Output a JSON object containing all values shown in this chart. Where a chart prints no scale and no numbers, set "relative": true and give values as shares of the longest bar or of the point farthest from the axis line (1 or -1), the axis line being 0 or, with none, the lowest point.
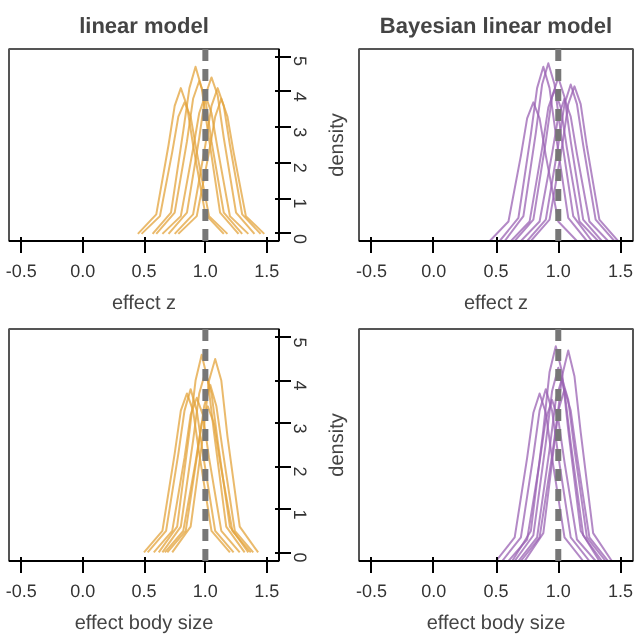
{
  "chart_data": [
    {
      "type": "line",
      "title": "linear model",
      "xlabel": "effect z",
      "xlim": [
        -0.6,
        1.6
      ],
      "xticks": [
        {
          "value": -0.5,
          "label": "-0.5"
        },
        {
          "value": 0,
          "label": "0.0"
        },
        {
          "value": 0.5,
          "label": "0.5"
        },
        {
          "value": 1,
          "label": "1.0"
        },
        {
          "value": 1.5,
          "label": "1.5"
        }
      ],
      "ylim": [
        -0.2,
        5.2
      ],
      "yticks": [
        0,
        1,
        2,
        3,
        4,
        5
      ],
      "ref_lines": [
        {
          "axis": "x",
          "value": 1,
          "color": "#777777",
          "line_style": "dashed"
        }
      ],
      "series": [
        {
          "color": "#e3a33b",
          "x": [
            0.45,
            0.6,
            0.7,
            0.75,
            0.8,
            0.85,
            0.9,
            1.0,
            1.15
          ],
          "values": [
            0,
            0.55,
            2.5,
            3.6,
            4.1,
            3.6,
            2.5,
            0.55,
            0
          ]
        },
        {
          "color": "#e3a33b",
          "x": [
            0.48,
            0.63,
            0.73,
            0.78,
            0.83,
            0.88,
            0.93,
            1.03,
            1.18
          ],
          "values": [
            0,
            0.5,
            2.3,
            3.3,
            3.7,
            3.3,
            2.3,
            0.5,
            0
          ]
        },
        {
          "color": "#e3a33b",
          "x": [
            0.57,
            0.72,
            0.82,
            0.87,
            0.92,
            0.97,
            1.02,
            1.12,
            1.27
          ],
          "values": [
            0,
            0.6,
            2.9,
            4.1,
            4.7,
            4.1,
            2.9,
            0.6,
            0
          ]
        },
        {
          "color": "#e3a33b",
          "x": [
            0.6,
            0.75,
            0.85,
            0.9,
            0.95,
            1.0,
            1.05,
            1.15,
            1.3
          ],
          "values": [
            0,
            0.6,
            2.6,
            3.8,
            4.3,
            3.8,
            2.6,
            0.6,
            0
          ]
        },
        {
          "color": "#e3a33b",
          "x": [
            0.65,
            0.8,
            0.9,
            0.95,
            1.0,
            1.05,
            1.1,
            1.2,
            1.35
          ],
          "values": [
            0,
            0.5,
            2.4,
            3.4,
            3.9,
            3.4,
            2.4,
            0.5,
            0
          ]
        },
        {
          "color": "#e3a33b",
          "x": [
            0.7,
            0.85,
            0.95,
            1.0,
            1.05,
            1.1,
            1.15,
            1.25,
            1.4
          ],
          "values": [
            0,
            0.6,
            2.7,
            3.9,
            4.4,
            3.9,
            2.7,
            0.6,
            0
          ]
        },
        {
          "color": "#e3a33b",
          "x": [
            0.75,
            0.9,
            1.0,
            1.05,
            1.1,
            1.15,
            1.2,
            1.3,
            1.45
          ],
          "values": [
            0,
            0.55,
            2.5,
            3.6,
            4.1,
            3.6,
            2.5,
            0.55,
            0
          ]
        },
        {
          "color": "#e3a33b",
          "x": [
            0.78,
            0.93,
            1.03,
            1.08,
            1.13,
            1.18,
            1.23,
            1.33,
            1.48
          ],
          "values": [
            0,
            0.5,
            2.3,
            3.3,
            3.8,
            3.3,
            2.3,
            0.5,
            0
          ]
        }
      ]
    },
    {
      "type": "line",
      "title": "Bayesian linear model",
      "xlabel": "effect z",
      "ylabel": "density",
      "relative": true,
      "xlim": [
        -0.6,
        1.6
      ],
      "xticks": [
        {
          "value": -0.5,
          "label": "-0.5"
        },
        {
          "value": 0,
          "label": "0.0"
        },
        {
          "value": 0.5,
          "label": "0.5"
        },
        {
          "value": 1,
          "label": "1.0"
        },
        {
          "value": 1.5,
          "label": "1.5"
        }
      ],
      "ref_lines": [
        {
          "axis": "x",
          "value": 1,
          "color": "#777777",
          "line_style": "dashed"
        }
      ],
      "series": [
        {
          "color": "#9a62b3",
          "x": [
            0.45,
            0.6,
            0.7,
            0.75,
            0.8,
            0.85,
            0.9,
            1.0,
            1.15
          ],
          "values": [
            0,
            0.11,
            0.48,
            0.69,
            0.78,
            0.69,
            0.48,
            0.11,
            0
          ]
        },
        {
          "color": "#9a62b3",
          "x": [
            0.53,
            0.68,
            0.78,
            0.83,
            0.88,
            0.93,
            0.98,
            1.08,
            1.23
          ],
          "values": [
            0,
            0.13,
            0.6,
            0.86,
            0.98,
            0.86,
            0.6,
            0.13,
            0
          ]
        },
        {
          "color": "#9a62b3",
          "x": [
            0.57,
            0.72,
            0.82,
            0.87,
            0.92,
            0.97,
            1.02,
            1.12,
            1.27
          ],
          "values": [
            0,
            0.14,
            0.61,
            0.88,
            1,
            0.88,
            0.61,
            0.14,
            0
          ]
        },
        {
          "color": "#9a62b3",
          "x": [
            0.62,
            0.77,
            0.87,
            0.92,
            0.97,
            1.02,
            1.07,
            1.17,
            1.32
          ],
          "values": [
            0,
            0.11,
            0.52,
            0.75,
            0.85,
            0.75,
            0.52,
            0.11,
            0
          ]
        },
        {
          "color": "#9a62b3",
          "x": [
            0.65,
            0.8,
            0.9,
            0.95,
            1.0,
            1.05,
            1.1,
            1.2,
            1.35
          ],
          "values": [
            0,
            0.12,
            0.56,
            0.81,
            0.92,
            0.81,
            0.56,
            0.12,
            0
          ]
        },
        {
          "color": "#9a62b3",
          "x": [
            0.7,
            0.85,
            0.95,
            1.0,
            1.05,
            1.1,
            1.15,
            1.25,
            1.4
          ],
          "values": [
            0,
            0.11,
            0.49,
            0.7,
            0.8,
            0.7,
            0.49,
            0.11,
            0
          ]
        },
        {
          "color": "#9a62b3",
          "x": [
            0.75,
            0.9,
            1.0,
            1.05,
            1.1,
            1.15,
            1.2,
            1.3,
            1.45
          ],
          "values": [
            0,
            0.12,
            0.54,
            0.77,
            0.88,
            0.77,
            0.54,
            0.12,
            0
          ]
        },
        {
          "color": "#9a62b3",
          "x": [
            0.78,
            0.93,
            1.03,
            1.08,
            1.13,
            1.18,
            1.23,
            1.33,
            1.48
          ],
          "values": [
            0,
            0.12,
            0.53,
            0.77,
            0.87,
            0.77,
            0.53,
            0.12,
            0
          ]
        }
      ]
    },
    {
      "type": "line",
      "xlabel": "effect body size",
      "xlim": [
        -0.6,
        1.6
      ],
      "xticks": [
        {
          "value": -0.5,
          "label": "-0.5"
        },
        {
          "value": 0,
          "label": "0.0"
        },
        {
          "value": 0.5,
          "label": "0.5"
        },
        {
          "value": 1,
          "label": "1.0"
        },
        {
          "value": 1.5,
          "label": "1.5"
        }
      ],
      "ylim": [
        -0.2,
        5.2
      ],
      "yticks": [
        0,
        1,
        2,
        3,
        4,
        5
      ],
      "ref_lines": [
        {
          "axis": "x",
          "value": 1,
          "color": "#777777",
          "line_style": "dashed"
        }
      ],
      "series": [
        {
          "color": "#e3a33b",
          "x": [
            0.5,
            0.65,
            0.75,
            0.8,
            0.85,
            0.9,
            0.95,
            1.05,
            1.2
          ],
          "values": [
            0,
            0.5,
            2.3,
            3.3,
            3.7,
            3.3,
            2.3,
            0.5,
            0
          ]
        },
        {
          "color": "#e3a33b",
          "x": [
            0.53,
            0.68,
            0.78,
            0.83,
            0.88,
            0.93,
            0.98,
            1.08,
            1.23
          ],
          "values": [
            0,
            0.5,
            2.3,
            3.3,
            3.8,
            3.3,
            2.3,
            0.5,
            0
          ]
        },
        {
          "color": "#e3a33b",
          "x": [
            0.58,
            0.73,
            0.83,
            0.88,
            0.93,
            0.98,
            1.03,
            1.13,
            1.28
          ],
          "values": [
            0,
            0.5,
            2.2,
            3.2,
            3.6,
            3.2,
            2.2,
            0.5,
            0
          ]
        },
        {
          "color": "#e3a33b",
          "x": [
            0.62,
            0.77,
            0.87,
            0.92,
            0.97,
            1.02,
            1.07,
            1.17,
            1.32
          ],
          "values": [
            0,
            0.6,
            2.8,
            4.0,
            4.6,
            4.0,
            2.8,
            0.6,
            0
          ]
        },
        {
          "color": "#e3a33b",
          "x": [
            0.65,
            0.8,
            0.9,
            0.95,
            1.0,
            1.05,
            1.1,
            1.2,
            1.35
          ],
          "values": [
            0,
            0.6,
            2.6,
            3.7,
            4.2,
            3.7,
            2.6,
            0.6,
            0
          ]
        },
        {
          "color": "#e3a33b",
          "x": [
            0.67,
            0.82,
            0.92,
            0.97,
            1.02,
            1.07,
            1.12,
            1.22,
            1.37
          ],
          "values": [
            0,
            0.5,
            2.1,
            3.0,
            3.4,
            3.0,
            2.1,
            0.5,
            0
          ]
        },
        {
          "color": "#e3a33b",
          "x": [
            0.69,
            0.84,
            0.94,
            0.99,
            1.04,
            1.09,
            1.14,
            1.24,
            1.39
          ],
          "values": [
            0,
            0.5,
            2.4,
            3.4,
            3.9,
            3.4,
            2.4,
            0.5,
            0
          ]
        },
        {
          "color": "#e3a33b",
          "x": [
            0.73,
            0.88,
            0.98,
            1.03,
            1.08,
            1.13,
            1.18,
            1.28,
            1.43
          ],
          "values": [
            0,
            0.6,
            2.7,
            4.0,
            4.5,
            4.0,
            2.7,
            0.6,
            0
          ]
        }
      ]
    },
    {
      "type": "line",
      "xlabel": "effect body size",
      "ylabel": "density",
      "relative": true,
      "xlim": [
        -0.6,
        1.6
      ],
      "xticks": [
        {
          "value": -0.5,
          "label": "-0.5"
        },
        {
          "value": 0,
          "label": "0.0"
        },
        {
          "value": 0.5,
          "label": "0.5"
        },
        {
          "value": 1,
          "label": "1.0"
        },
        {
          "value": 1.5,
          "label": "1.5"
        }
      ],
      "ref_lines": [
        {
          "axis": "x",
          "value": 1,
          "color": "#777777",
          "line_style": "dashed"
        }
      ],
      "series": [
        {
          "color": "#9a62b3",
          "x": [
            0.5,
            0.65,
            0.75,
            0.8,
            0.85,
            0.9,
            0.95,
            1.05,
            1.2
          ],
          "values": [
            0,
            0.11,
            0.48,
            0.69,
            0.78,
            0.69,
            0.48,
            0.11,
            0
          ]
        },
        {
          "color": "#9a62b3",
          "x": [
            0.55,
            0.7,
            0.8,
            0.85,
            0.9,
            0.95,
            1.0,
            1.1,
            1.25
          ],
          "values": [
            0,
            0.11,
            0.49,
            0.7,
            0.8,
            0.7,
            0.49,
            0.11,
            0
          ]
        },
        {
          "color": "#9a62b3",
          "x": [
            0.6,
            0.75,
            0.85,
            0.9,
            0.95,
            1.0,
            1.05,
            1.15,
            1.3
          ],
          "values": [
            0,
            0.1,
            0.46,
            0.66,
            0.75,
            0.66,
            0.46,
            0.1,
            0
          ]
        },
        {
          "color": "#9a62b3",
          "x": [
            0.63,
            0.78,
            0.88,
            0.93,
            0.98,
            1.03,
            1.08,
            1.18,
            1.33
          ],
          "values": [
            0,
            0.14,
            0.61,
            0.88,
            1,
            0.88,
            0.61,
            0.14,
            0
          ]
        },
        {
          "color": "#9a62b3",
          "x": [
            0.65,
            0.8,
            0.9,
            0.95,
            1.0,
            1.05,
            1.1,
            1.2,
            1.35
          ],
          "values": [
            0,
            0.12,
            0.55,
            0.79,
            0.9,
            0.79,
            0.55,
            0.12,
            0
          ]
        },
        {
          "color": "#9a62b3",
          "x": [
            0.68,
            0.83,
            0.93,
            0.98,
            1.03,
            1.08,
            1.13,
            1.23,
            1.38
          ],
          "values": [
            0,
            0.11,
            0.52,
            0.75,
            0.85,
            0.75,
            0.52,
            0.11,
            0
          ]
        },
        {
          "color": "#9a62b3",
          "x": [
            0.73,
            0.88,
            0.98,
            1.03,
            1.08,
            1.13,
            1.18,
            1.28,
            1.43
          ],
          "values": [
            0,
            0.13,
            0.6,
            0.86,
            0.98,
            0.86,
            0.6,
            0.13,
            0
          ]
        },
        {
          "color": "#9a62b3",
          "x": [
            0.7,
            0.85,
            0.95,
            1.0,
            1.05,
            1.1,
            1.15,
            1.25,
            1.4
          ],
          "values": [
            0,
            0.11,
            0.49,
            0.7,
            0.8,
            0.7,
            0.49,
            0.11,
            0
          ]
        }
      ]
    }
  ]
}
